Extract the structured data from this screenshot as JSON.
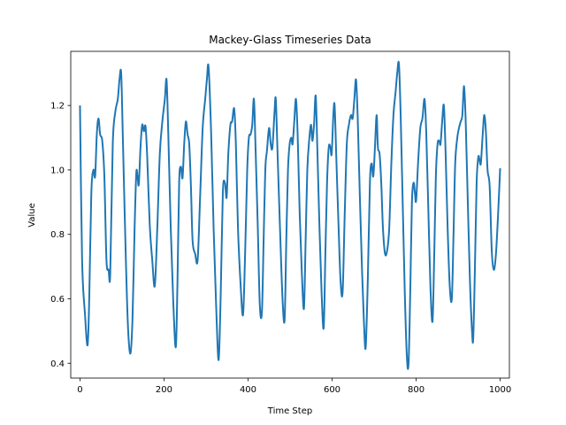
{
  "chart_data": {
    "type": "line",
    "title": "Mackey-Glass Timeseries Data",
    "xlabel": "Time Step",
    "ylabel": "Value",
    "xlim": [
      -22,
      1022
    ],
    "ylim": [
      0.354,
      1.368
    ],
    "xticks": [
      0,
      200,
      400,
      600,
      800,
      1000
    ],
    "yticks": [
      0.4,
      0.6,
      0.8,
      1.0,
      1.2
    ],
    "ytick_labels": [
      "0.4",
      "0.6",
      "0.8",
      "1.0",
      "1.2"
    ],
    "grid": false,
    "legend": "none",
    "series": [
      {
        "color": "#1f77b4",
        "points": [
          [
            0,
            1.2
          ],
          [
            5,
            0.72
          ],
          [
            12,
            0.55
          ],
          [
            18,
            0.456
          ],
          [
            22,
            0.6
          ],
          [
            27,
            0.93
          ],
          [
            32,
            1.0
          ],
          [
            36,
            0.98
          ],
          [
            40,
            1.11
          ],
          [
            44,
            1.16
          ],
          [
            48,
            1.11
          ],
          [
            53,
            1.09
          ],
          [
            58,
            0.98
          ],
          [
            63,
            0.72
          ],
          [
            68,
            0.69
          ],
          [
            72,
            0.68
          ],
          [
            78,
            1.08
          ],
          [
            84,
            1.18
          ],
          [
            90,
            1.22
          ],
          [
            94,
            1.28
          ],
          [
            98,
            1.3
          ],
          [
            102,
            1.1
          ],
          [
            108,
            0.78
          ],
          [
            114,
            0.52
          ],
          [
            120,
            0.43
          ],
          [
            125,
            0.54
          ],
          [
            130,
            0.82
          ],
          [
            134,
            0.99
          ],
          [
            137,
            0.98
          ],
          [
            140,
            0.955
          ],
          [
            144,
            1.07
          ],
          [
            148,
            1.14
          ],
          [
            152,
            1.12
          ],
          [
            156,
            1.135
          ],
          [
            160,
            1.04
          ],
          [
            166,
            0.83
          ],
          [
            172,
            0.72
          ],
          [
            178,
            0.64
          ],
          [
            184,
            0.82
          ],
          [
            190,
            1.05
          ],
          [
            196,
            1.15
          ],
          [
            202,
            1.22
          ],
          [
            206,
            1.28
          ],
          [
            210,
            1.12
          ],
          [
            216,
            0.82
          ],
          [
            222,
            0.59
          ],
          [
            228,
            0.45
          ],
          [
            232,
            0.65
          ],
          [
            236,
            0.96
          ],
          [
            240,
            1.01
          ],
          [
            244,
            0.975
          ],
          [
            248,
            1.08
          ],
          [
            252,
            1.15
          ],
          [
            256,
            1.11
          ],
          [
            260,
            1.08
          ],
          [
            264,
            0.95
          ],
          [
            268,
            0.78
          ],
          [
            274,
            0.74
          ],
          [
            280,
            0.72
          ],
          [
            286,
            0.92
          ],
          [
            292,
            1.13
          ],
          [
            298,
            1.22
          ],
          [
            302,
            1.28
          ],
          [
            306,
            1.32
          ],
          [
            312,
            1.12
          ],
          [
            318,
            0.82
          ],
          [
            324,
            0.58
          ],
          [
            330,
            0.41
          ],
          [
            335,
            0.62
          ],
          [
            340,
            0.93
          ],
          [
            345,
            0.96
          ],
          [
            349,
            0.915
          ],
          [
            353,
            1.05
          ],
          [
            358,
            1.14
          ],
          [
            362,
            1.15
          ],
          [
            367,
            1.19
          ],
          [
            371,
            1.08
          ],
          [
            376,
            0.82
          ],
          [
            382,
            0.65
          ],
          [
            388,
            0.55
          ],
          [
            393,
            0.74
          ],
          [
            398,
            1.0
          ],
          [
            402,
            1.1
          ],
          [
            406,
            1.11
          ],
          [
            410,
            1.14
          ],
          [
            414,
            1.22
          ],
          [
            418,
            1.06
          ],
          [
            423,
            0.83
          ],
          [
            428,
            0.58
          ],
          [
            433,
            0.56
          ],
          [
            437,
            0.78
          ],
          [
            441,
            1.0
          ],
          [
            445,
            1.06
          ],
          [
            450,
            1.13
          ],
          [
            454,
            1.08
          ],
          [
            458,
            1.07
          ],
          [
            463,
            1.18
          ],
          [
            466,
            1.22
          ],
          [
            470,
            1.06
          ],
          [
            476,
            0.82
          ],
          [
            482,
            0.6
          ],
          [
            487,
            0.535
          ],
          [
            491,
            0.78
          ],
          [
            495,
            1.0
          ],
          [
            499,
            1.08
          ],
          [
            503,
            1.1
          ],
          [
            506,
            1.08
          ],
          [
            510,
            1.15
          ],
          [
            514,
            1.22
          ],
          [
            518,
            1.11
          ],
          [
            523,
            0.86
          ],
          [
            528,
            0.68
          ],
          [
            533,
            0.57
          ],
          [
            537,
            0.78
          ],
          [
            541,
            1.0
          ],
          [
            546,
            1.1
          ],
          [
            550,
            1.14
          ],
          [
            553,
            1.09
          ],
          [
            557,
            1.14
          ],
          [
            561,
            1.23
          ],
          [
            565,
            1.06
          ],
          [
            570,
            0.82
          ],
          [
            575,
            0.62
          ],
          [
            580,
            0.51
          ],
          [
            584,
            0.74
          ],
          [
            588,
            0.96
          ],
          [
            592,
            1.07
          ],
          [
            596,
            1.07
          ],
          [
            599,
            1.05
          ],
          [
            603,
            1.17
          ],
          [
            606,
            1.2
          ],
          [
            610,
            1.04
          ],
          [
            615,
            0.84
          ],
          [
            620,
            0.66
          ],
          [
            625,
            0.62
          ],
          [
            630,
            0.86
          ],
          [
            635,
            1.08
          ],
          [
            640,
            1.14
          ],
          [
            645,
            1.17
          ],
          [
            649,
            1.16
          ],
          [
            653,
            1.22
          ],
          [
            657,
            1.28
          ],
          [
            661,
            1.16
          ],
          [
            666,
            0.92
          ],
          [
            671,
            0.7
          ],
          [
            676,
            0.52
          ],
          [
            680,
            0.45
          ],
          [
            685,
            0.66
          ],
          [
            690,
            0.96
          ],
          [
            694,
            1.02
          ],
          [
            698,
            0.98
          ],
          [
            702,
            1.07
          ],
          [
            706,
            1.17
          ],
          [
            709,
            1.07
          ],
          [
            713,
            1.05
          ],
          [
            717,
            0.96
          ],
          [
            721,
            0.82
          ],
          [
            726,
            0.74
          ],
          [
            731,
            0.75
          ],
          [
            736,
            0.82
          ],
          [
            741,
            1.02
          ],
          [
            746,
            1.17
          ],
          [
            751,
            1.24
          ],
          [
            755,
            1.3
          ],
          [
            759,
            1.33
          ],
          [
            763,
            1.18
          ],
          [
            768,
            0.9
          ],
          [
            773,
            0.62
          ],
          [
            778,
            0.42
          ],
          [
            782,
            0.4
          ],
          [
            786,
            0.62
          ],
          [
            790,
            0.9
          ],
          [
            794,
            0.96
          ],
          [
            797,
            0.93
          ],
          [
            800,
            0.905
          ],
          [
            805,
            1.03
          ],
          [
            810,
            1.13
          ],
          [
            815,
            1.16
          ],
          [
            820,
            1.22
          ],
          [
            824,
            1.12
          ],
          [
            829,
            0.88
          ],
          [
            834,
            0.64
          ],
          [
            839,
            0.53
          ],
          [
            843,
            0.73
          ],
          [
            847,
            0.98
          ],
          [
            851,
            1.08
          ],
          [
            855,
            1.09
          ],
          [
            858,
            1.08
          ],
          [
            862,
            1.15
          ],
          [
            866,
            1.2
          ],
          [
            870,
            1.06
          ],
          [
            875,
            0.82
          ],
          [
            880,
            0.64
          ],
          [
            885,
            0.6
          ],
          [
            889,
            0.8
          ],
          [
            893,
            1.02
          ],
          [
            898,
            1.1
          ],
          [
            902,
            1.13
          ],
          [
            906,
            1.15
          ],
          [
            910,
            1.17
          ],
          [
            914,
            1.26
          ],
          [
            918,
            1.15
          ],
          [
            923,
            0.9
          ],
          [
            928,
            0.66
          ],
          [
            933,
            0.5
          ],
          [
            936,
            0.48
          ],
          [
            940,
            0.7
          ],
          [
            944,
            0.96
          ],
          [
            948,
            1.04
          ],
          [
            951,
            1.03
          ],
          [
            954,
            1.02
          ],
          [
            958,
            1.1
          ],
          [
            962,
            1.17
          ],
          [
            966,
            1.12
          ],
          [
            970,
            1.0
          ],
          [
            975,
            0.95
          ],
          [
            980,
            0.75
          ],
          [
            985,
            0.69
          ],
          [
            990,
            0.74
          ],
          [
            995,
            0.86
          ],
          [
            1000,
            1.005
          ]
        ]
      }
    ]
  }
}
